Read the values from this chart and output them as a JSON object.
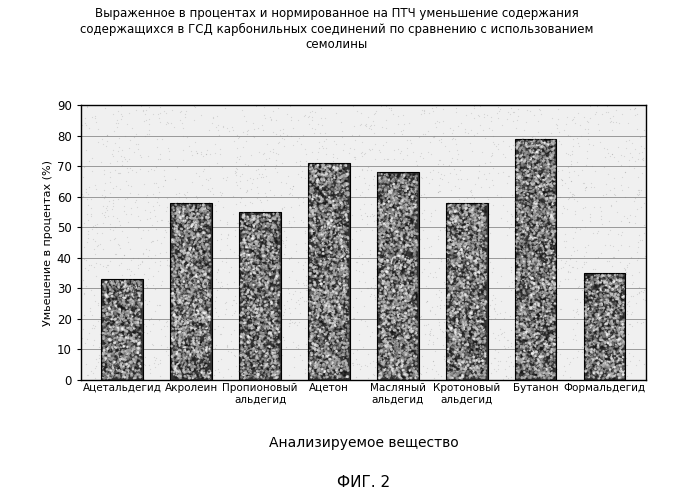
{
  "categories": [
    "Ацетальдегид",
    "Акролеин",
    "Пропионовый\nальдегид",
    "Ацетон",
    "Масляный\nальдегид",
    "Кротоновый\nальдегид",
    "Бутанон",
    "Формальдегид"
  ],
  "values": [
    33,
    58,
    55,
    71,
    68,
    58,
    79,
    35
  ],
  "ylabel": "Умьешение в процентах (%)",
  "xlabel": "Анализируемое вещество",
  "title_line1": "Выраженное в процентах и нормированное на ПТЧ уменьшение содержания",
  "title_line2": "содержащихся в ГСД карбонильных соединений по сравнению с использованием",
  "title_line3": "семолины",
  "fig_label": "ФИГ. 2",
  "ylim": [
    0,
    90
  ],
  "yticks": [
    0,
    10,
    20,
    30,
    40,
    50,
    60,
    70,
    80,
    90
  ],
  "background_color": "#ffffff"
}
